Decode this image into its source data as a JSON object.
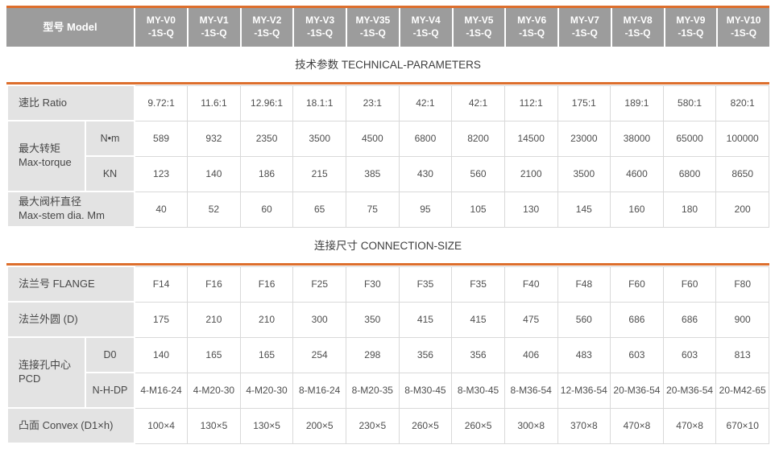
{
  "colors": {
    "accent_orange": "#dd6e2c",
    "header_gray": "#9c9c9c",
    "label_cell_gray": "#e3e3e3",
    "grid_line": "#d9d9d9",
    "header_text": "#ffffff",
    "body_text": "#4e4e4e"
  },
  "header": {
    "model_label": "型号 Model",
    "models": [
      {
        "line1": "MY-V0",
        "line2": "-1S-Q"
      },
      {
        "line1": "MY-V1",
        "line2": "-1S-Q"
      },
      {
        "line1": "MY-V2",
        "line2": "-1S-Q"
      },
      {
        "line1": "MY-V3",
        "line2": "-1S-Q"
      },
      {
        "line1": "MY-V35",
        "line2": "-1S-Q"
      },
      {
        "line1": "MY-V4",
        "line2": "-1S-Q"
      },
      {
        "line1": "MY-V5",
        "line2": "-1S-Q"
      },
      {
        "line1": "MY-V6",
        "line2": "-1S-Q"
      },
      {
        "line1": "MY-V7",
        "line2": "-1S-Q"
      },
      {
        "line1": "MY-V8",
        "line2": "-1S-Q"
      },
      {
        "line1": "MY-V9",
        "line2": "-1S-Q"
      },
      {
        "line1": "MY-V10",
        "line2": "-1S-Q"
      }
    ]
  },
  "technical": {
    "title": "技术参数 TECHNICAL-PARAMETERS",
    "ratio": {
      "label": "速比 Ratio",
      "values": [
        "9.72:1",
        "11.6:1",
        "12.96:1",
        "18.1:1",
        "23:1",
        "42:1",
        "42:1",
        "112:1",
        "175:1",
        "189:1",
        "580:1",
        "820:1"
      ]
    },
    "max_torque": {
      "label_cn": "最大转矩",
      "label_en": "Max-torque",
      "nm": {
        "sub": "N•m",
        "values": [
          "589",
          "932",
          "2350",
          "3500",
          "4500",
          "6800",
          "8200",
          "14500",
          "23000",
          "38000",
          "65000",
          "100000"
        ]
      },
      "kn": {
        "sub": "KN",
        "values": [
          "123",
          "140",
          "186",
          "215",
          "385",
          "430",
          "560",
          "2100",
          "3500",
          "4600",
          "6800",
          "8650"
        ]
      }
    },
    "max_stem": {
      "label_cn": "最大阀杆直径",
      "label_en": "Max-stem dia. Mm",
      "values": [
        "40",
        "52",
        "60",
        "65",
        "75",
        "95",
        "105",
        "130",
        "145",
        "160",
        "180",
        "200"
      ]
    }
  },
  "connection": {
    "title": "连接尺寸 CONNECTION-SIZE",
    "flange": {
      "label": "法兰号 FLANGE",
      "values": [
        "F14",
        "F16",
        "F16",
        "F25",
        "F30",
        "F35",
        "F35",
        "F40",
        "F48",
        "F60",
        "F60",
        "F80"
      ]
    },
    "flange_od": {
      "label": "法兰外圆 (D)",
      "values": [
        "175",
        "210",
        "210",
        "300",
        "350",
        "415",
        "415",
        "475",
        "560",
        "686",
        "686",
        "900"
      ]
    },
    "pcd": {
      "label_cn": "连接孔中心",
      "label_en": "PCD",
      "d0": {
        "sub": "D0",
        "values": [
          "140",
          "165",
          "165",
          "254",
          "298",
          "356",
          "356",
          "406",
          "483",
          "603",
          "603",
          "813"
        ]
      },
      "nhdp": {
        "sub": "N-H-DP",
        "values": [
          "4-M16-24",
          "4-M20-30",
          "4-M20-30",
          "8-M16-24",
          "8-M20-35",
          "8-M30-45",
          "8-M30-45",
          "8-M36-54",
          "12-M36-54",
          "20-M36-54",
          "20-M36-54",
          "20-M42-65"
        ]
      }
    },
    "convex": {
      "label": "凸面 Convex (D1×h)",
      "values": [
        "100×4",
        "130×5",
        "130×5",
        "200×5",
        "230×5",
        "260×5",
        "260×5",
        "300×8",
        "370×8",
        "470×8",
        "470×8",
        "670×10"
      ]
    }
  }
}
